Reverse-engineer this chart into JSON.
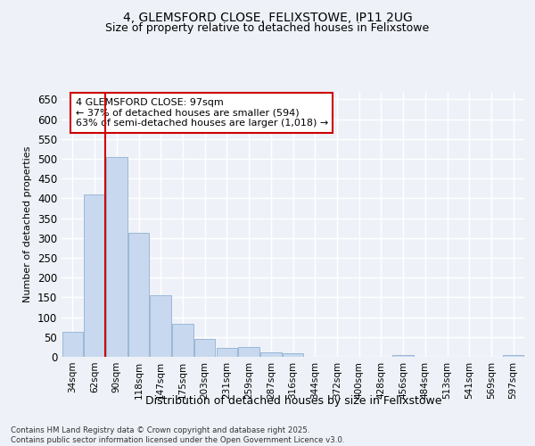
{
  "title1": "4, GLEMSFORD CLOSE, FELIXSTOWE, IP11 2UG",
  "title2": "Size of property relative to detached houses in Felixstowe",
  "xlabel": "Distribution of detached houses by size in Felixstowe",
  "ylabel": "Number of detached properties",
  "categories": [
    "34sqm",
    "62sqm",
    "90sqm",
    "118sqm",
    "147sqm",
    "175sqm",
    "203sqm",
    "231sqm",
    "259sqm",
    "287sqm",
    "316sqm",
    "344sqm",
    "372sqm",
    "400sqm",
    "428sqm",
    "456sqm",
    "484sqm",
    "513sqm",
    "541sqm",
    "569sqm",
    "597sqm"
  ],
  "values": [
    62,
    410,
    505,
    312,
    155,
    83,
    46,
    23,
    25,
    11,
    9,
    0,
    0,
    0,
    0,
    4,
    0,
    0,
    0,
    0,
    4
  ],
  "bar_color": "#c8d8ee",
  "bar_edge_color": "#9ab8d8",
  "vline_x": 1.5,
  "vline_color": "#cc0000",
  "annotation_text": "4 GLEMSFORD CLOSE: 97sqm\n← 37% of detached houses are smaller (594)\n63% of semi-detached houses are larger (1,018) →",
  "annotation_box_color": "#ffffff",
  "annotation_box_edge": "#cc0000",
  "ylim": [
    0,
    670
  ],
  "yticks": [
    0,
    50,
    100,
    150,
    200,
    250,
    300,
    350,
    400,
    450,
    500,
    550,
    600,
    650
  ],
  "footer": "Contains HM Land Registry data © Crown copyright and database right 2025.\nContains public sector information licensed under the Open Government Licence v3.0.",
  "bg_color": "#eef2f8",
  "plot_bg_color": "#eef2f8",
  "grid_color": "#ffffff",
  "title_fontsize": 10,
  "subtitle_fontsize": 9
}
